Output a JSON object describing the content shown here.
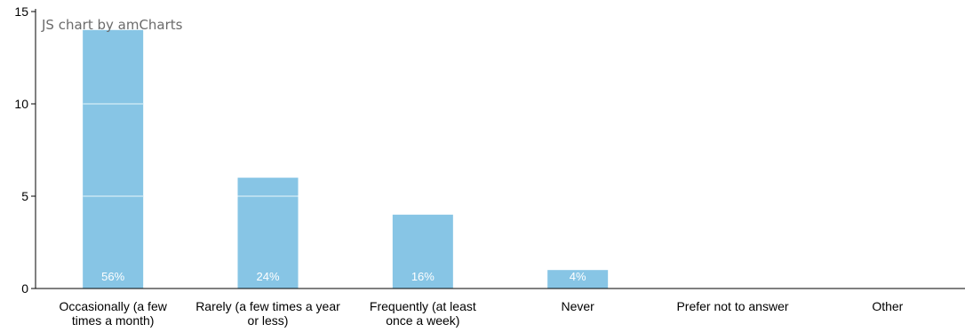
{
  "credit": "JS chart by amCharts",
  "colors": {
    "bar": "#87c5e5",
    "axis": "#000000",
    "segment_line": "#b8def0"
  },
  "chart_data": {
    "type": "bar",
    "title": "",
    "xlabel": "",
    "ylabel": "",
    "ylim": [
      0,
      15
    ],
    "yticks": [
      "0",
      "5",
      "10",
      "15"
    ],
    "grid": false,
    "categories": [
      [
        "Occasionally (a few",
        "times a month)"
      ],
      [
        "Rarely (a few times a year",
        "or less)"
      ],
      [
        "Frequently (at least",
        "once a week)"
      ],
      [
        "Never"
      ],
      [
        "Prefer not to answer"
      ],
      [
        "Other"
      ]
    ],
    "values": [
      14,
      6,
      4,
      1,
      0,
      0
    ],
    "labels": [
      "56%",
      "24%",
      "16%",
      "4%",
      "",
      ""
    ]
  }
}
